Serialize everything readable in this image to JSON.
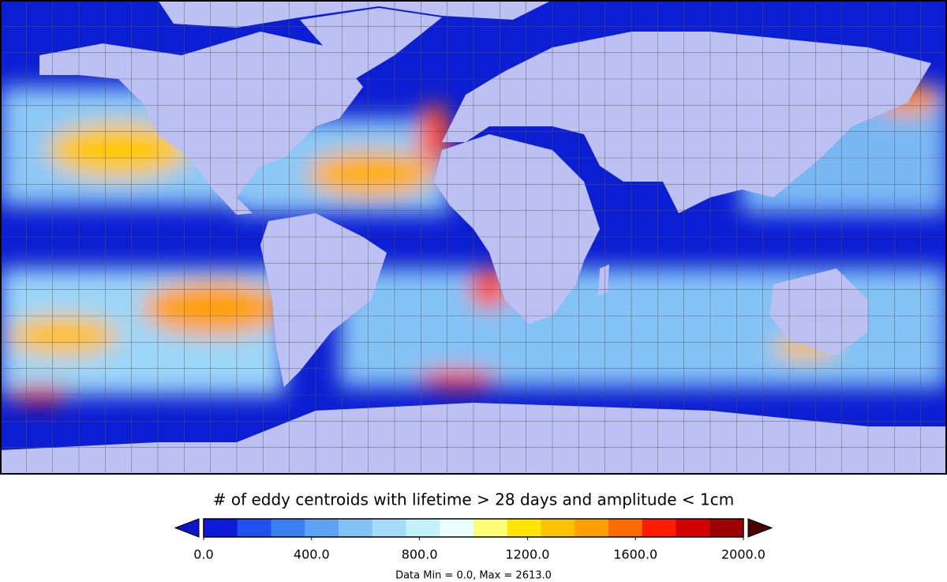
{
  "map": {
    "title": "# of eddy centroids with lifetime > 28 days and amplitude < 1cm",
    "footer": "Data Min = 0.0, Max = 2613.0",
    "colorbar": {
      "range": [
        0,
        2000
      ],
      "colors": [
        "#0d1ad6",
        "#2050ee",
        "#3a80f0",
        "#5ea2f4",
        "#84c2f6",
        "#a6dcf8",
        "#c4f2fb",
        "#ebfdfd",
        "#ffff7a",
        "#ffe600",
        "#ffc200",
        "#ffa000",
        "#ff6c00",
        "#ff1c00",
        "#d40000",
        "#9c0000"
      ],
      "under_color": "#0c18c8",
      "over_color": "#4a0000",
      "ticks": [
        {
          "value": 0,
          "label": "0.0"
        },
        {
          "value": 400,
          "label": "400.0"
        },
        {
          "value": 800,
          "label": "800.0"
        },
        {
          "value": 1200,
          "label": "1200.0"
        },
        {
          "value": 1600,
          "label": "1600.0"
        },
        {
          "value": 2000,
          "label": "2000.0"
        }
      ]
    }
  }
}
